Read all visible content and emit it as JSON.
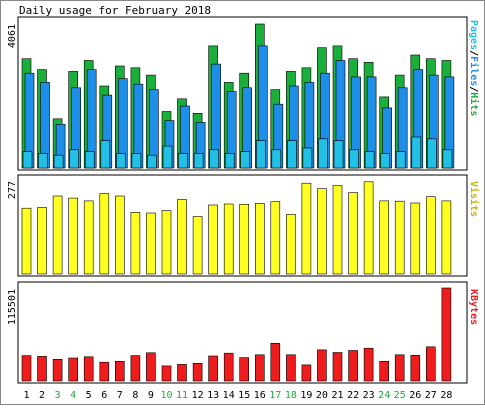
{
  "chart_data": [
    {
      "type": "bar",
      "title": "Daily usage for February 2018",
      "ylabel_top": "4061",
      "legend_labels": [
        "Pages",
        "Files",
        "Hits"
      ],
      "legend_separator": "/",
      "colors": {
        "hits": "#1aae3a",
        "files": "#1e8fe8",
        "pages": "#22c0e6"
      },
      "categories": [
        "1",
        "2",
        "3",
        "4",
        "5",
        "6",
        "7",
        "8",
        "9",
        "10",
        "11",
        "12",
        "13",
        "14",
        "15",
        "16",
        "17",
        "18",
        "19",
        "20",
        "21",
        "22",
        "23",
        "24",
        "25",
        "26",
        "27",
        "28"
      ],
      "weekend_days": [
        "3",
        "4",
        "10",
        "11",
        "17",
        "18",
        "24",
        "25"
      ],
      "ylim": [
        0,
        4061
      ],
      "series": [
        {
          "name": "Hits",
          "values": [
            3000,
            2700,
            1350,
            2650,
            2950,
            2250,
            2800,
            2750,
            2550,
            1550,
            1900,
            1500,
            3350,
            2350,
            2600,
            3950,
            2150,
            2650,
            2750,
            3300,
            3350,
            3000,
            2900,
            1950,
            2550,
            3100,
            3000,
            2950
          ]
        },
        {
          "name": "Files",
          "values": [
            2600,
            2350,
            1200,
            2200,
            2700,
            2000,
            2450,
            2300,
            2150,
            1300,
            1700,
            1250,
            2850,
            2100,
            2200,
            3350,
            1750,
            2250,
            2350,
            2600,
            2950,
            2500,
            2500,
            1650,
            2200,
            2700,
            2550,
            2500
          ]
        },
        {
          "name": "Pages",
          "values": [
            450,
            400,
            350,
            500,
            450,
            750,
            400,
            400,
            350,
            600,
            400,
            400,
            500,
            400,
            450,
            750,
            500,
            750,
            550,
            800,
            750,
            500,
            450,
            400,
            450,
            850,
            800,
            500
          ]
        }
      ]
    },
    {
      "type": "bar",
      "ylabel_top": "277",
      "legend_labels": [
        "Visits"
      ],
      "colors": {
        "visits": "#ffff22"
      },
      "categories": [
        "1",
        "2",
        "3",
        "4",
        "5",
        "6",
        "7",
        "8",
        "9",
        "10",
        "11",
        "12",
        "13",
        "14",
        "15",
        "16",
        "17",
        "18",
        "19",
        "20",
        "21",
        "22",
        "23",
        "24",
        "25",
        "26",
        "27",
        "28"
      ],
      "ylim": [
        0,
        277
      ],
      "series": [
        {
          "name": "Visits",
          "values": [
            190,
            192,
            225,
            219,
            211,
            232,
            225,
            178,
            176,
            183,
            215,
            166,
            199,
            202,
            201,
            204,
            209,
            172,
            262,
            246,
            255,
            235,
            266,
            211,
            210,
            205,
            223,
            211
          ]
        }
      ]
    },
    {
      "type": "bar",
      "ylabel_top": "115501",
      "legend_labels": [
        "KBytes"
      ],
      "colors": {
        "kbytes": "#ee1c1c"
      },
      "categories": [
        "1",
        "2",
        "3",
        "4",
        "5",
        "6",
        "7",
        "8",
        "9",
        "10",
        "11",
        "12",
        "13",
        "14",
        "15",
        "16",
        "17",
        "18",
        "19",
        "20",
        "21",
        "22",
        "23",
        "24",
        "25",
        "26",
        "27",
        "28"
      ],
      "ylim": [
        0,
        115501
      ],
      "series": [
        {
          "name": "KBytes",
          "values": [
            31500,
            30500,
            27000,
            28600,
            30000,
            23300,
            24500,
            31500,
            35000,
            18800,
            20600,
            22000,
            31000,
            34500,
            29000,
            32600,
            46800,
            32600,
            20000,
            38600,
            35400,
            37900,
            40700,
            24500,
            32600,
            31900,
            42500,
            115501
          ]
        }
      ]
    }
  ]
}
